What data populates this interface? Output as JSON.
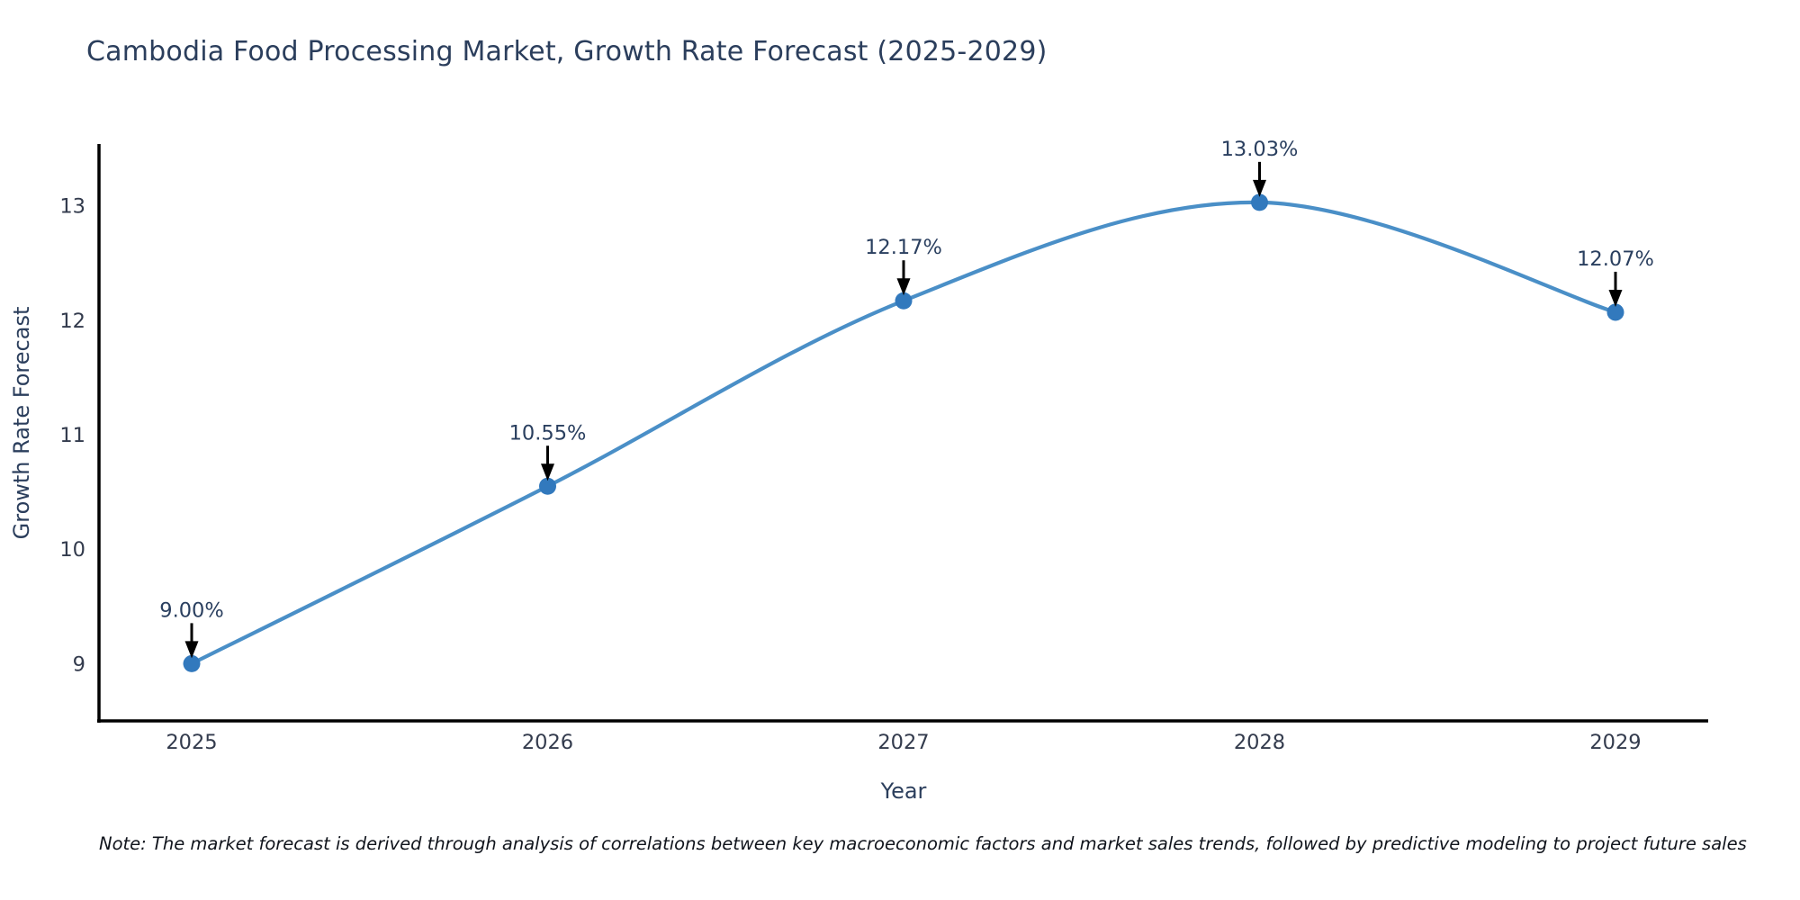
{
  "header": {
    "title": "Cambodia Food Processing Market, Growth Rate Forecast (2025-2029)"
  },
  "footnote": {
    "text": "Note: The market forecast is derived through analysis of correlations between key macroeconomic factors and market sales trends, followed by predictive modeling to project future sales"
  },
  "chart_data": {
    "type": "line",
    "title": "Cambodia Food Processing Market, Growth Rate Forecast (2025-2029)",
    "xlabel": "Year",
    "ylabel": "Growth Rate Forecast",
    "categories": [
      "2025",
      "2026",
      "2027",
      "2028",
      "2029"
    ],
    "series": [
      {
        "name": "Growth Rate Forecast",
        "values": [
          9.0,
          10.55,
          12.17,
          13.03,
          12.07
        ],
        "point_labels": [
          "9.00%",
          "10.55%",
          "12.17%",
          "13.03%",
          "12.07%"
        ]
      }
    ],
    "yticks": [
      9,
      10,
      11,
      12,
      13
    ],
    "ylim": [
      8.5,
      13.54
    ],
    "grid": false,
    "legend": false,
    "line_shape": "spline",
    "colors": {
      "line": "#4a8fc7",
      "marker": "#3279bd",
      "axis": "#000000",
      "arrow": "#000000",
      "tick_text": "#333b4d",
      "title_text": "#2b3e5c",
      "annotation_text": "#2a3f5f"
    }
  }
}
